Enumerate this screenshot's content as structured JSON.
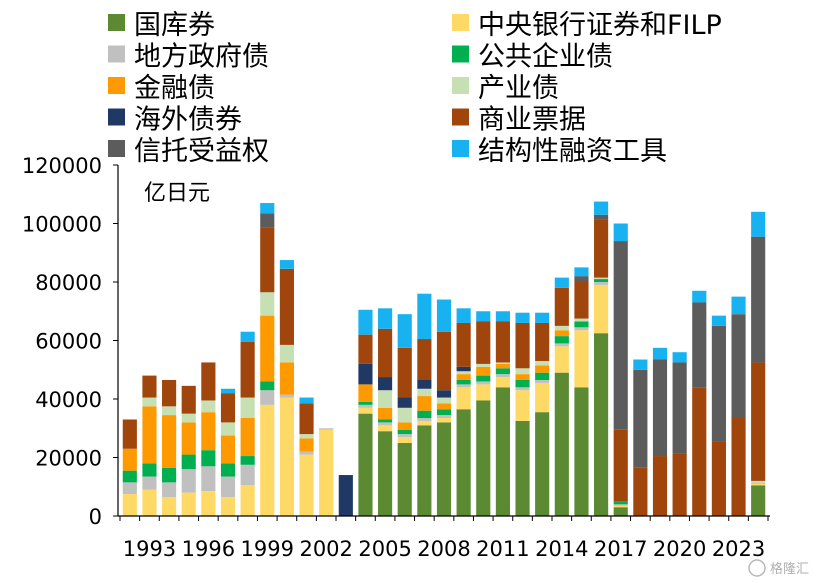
{
  "chart_data": {
    "type": "bar",
    "stacked": true,
    "unit_label": "亿日元",
    "ylim": [
      0,
      120000
    ],
    "yticks": [
      "0",
      "20000",
      "40000",
      "60000",
      "80000",
      "100000",
      "120000"
    ],
    "years": [
      1992,
      1993,
      1994,
      1995,
      1996,
      1997,
      1998,
      1999,
      2000,
      2001,
      2002,
      2003,
      2004,
      2005,
      2006,
      2007,
      2008,
      2009,
      2010,
      2011,
      2012,
      2013,
      2014,
      2015,
      2016,
      2017,
      2018,
      2019,
      2020,
      2021,
      2022,
      2023,
      2024
    ],
    "xtick_labels": [
      "1993",
      "1996",
      "1999",
      "2002",
      "2005",
      "2008",
      "2011",
      "2014",
      "2017",
      "2020",
      "2023"
    ],
    "series": [
      {
        "name": "国库券",
        "color": "#5b8a32",
        "values": [
          0,
          0,
          0,
          0,
          0,
          0,
          0,
          0,
          0,
          0,
          0,
          0,
          35000,
          29000,
          25000,
          31000,
          32000,
          36500,
          39500,
          44000,
          32500,
          35500,
          49000,
          44000,
          62500,
          3000,
          0,
          0,
          0,
          0,
          0,
          0,
          10500
        ]
      },
      {
        "name": "中央银行证券和FILP",
        "color": "#ffd966",
        "values": [
          7500,
          9000,
          6500,
          8000,
          8500,
          6500,
          10500,
          38000,
          40500,
          21000,
          29500,
          0,
          2000,
          2000,
          2000,
          1500,
          1500,
          7500,
          5500,
          3500,
          10500,
          10000,
          9000,
          19500,
          16500,
          500,
          0,
          0,
          0,
          0,
          0,
          0,
          500
        ]
      },
      {
        "name": "地方政府债",
        "color": "#c0c0c0",
        "values": [
          4000,
          4500,
          5000,
          8000,
          8500,
          7000,
          7000,
          5000,
          1000,
          1000,
          500,
          0,
          1000,
          1000,
          1000,
          1000,
          1000,
          1000,
          1000,
          1000,
          1000,
          1000,
          1000,
          1000,
          1000,
          500,
          0,
          0,
          0,
          0,
          0,
          0,
          500
        ]
      },
      {
        "name": "公共企业债",
        "color": "#00b050",
        "values": [
          4000,
          4500,
          5000,
          5000,
          5500,
          4500,
          3000,
          3000,
          0,
          0,
          0,
          0,
          1000,
          1000,
          1500,
          2500,
          2000,
          1500,
          2000,
          2000,
          2500,
          2500,
          2500,
          2000,
          1000,
          1000,
          0,
          0,
          0,
          0,
          0,
          0,
          0
        ]
      },
      {
        "name": "金融债",
        "color": "#ff9900",
        "values": [
          7500,
          19500,
          18000,
          11000,
          13000,
          9500,
          13000,
          22500,
          11000,
          4500,
          0,
          0,
          6000,
          4000,
          2500,
          5000,
          2000,
          2000,
          3000,
          1500,
          2000,
          2500,
          2000,
          0,
          0,
          0,
          0,
          0,
          0,
          0,
          0,
          0,
          0
        ]
      },
      {
        "name": "产业债",
        "color": "#c6e0b4",
        "values": [
          0,
          3000,
          3000,
          3000,
          4000,
          4500,
          7000,
          8000,
          6000,
          1500,
          0,
          0,
          0,
          6000,
          5000,
          2500,
          2000,
          1000,
          1000,
          500,
          2000,
          1500,
          1500,
          1000,
          500,
          0,
          0,
          0,
          0,
          0,
          0,
          0,
          500
        ]
      },
      {
        "name": "海外债券",
        "color": "#203864",
        "values": [
          0,
          0,
          0,
          0,
          0,
          0,
          0,
          0,
          0,
          0,
          0,
          14000,
          7000,
          4500,
          3500,
          3000,
          2500,
          1500,
          0,
          0,
          0,
          0,
          0,
          0,
          0,
          0,
          0,
          0,
          0,
          0,
          0,
          0,
          0
        ]
      },
      {
        "name": "商业票据",
        "color": "#a0450b",
        "values": [
          10000,
          7500,
          9000,
          9500,
          13000,
          10000,
          19000,
          22000,
          26000,
          10500,
          0,
          0,
          10000,
          16500,
          17000,
          14000,
          20000,
          15000,
          14500,
          14000,
          15500,
          13000,
          13000,
          12500,
          20000,
          24500,
          16500,
          20500,
          21500,
          44000,
          25500,
          33500,
          40500
        ]
      },
      {
        "name": "信托受益权",
        "color": "#5c5c5c",
        "values": [
          0,
          0,
          0,
          0,
          0,
          0,
          0,
          5000,
          0,
          0,
          0,
          0,
          0,
          0,
          0,
          0,
          0,
          0,
          0,
          0,
          0,
          0,
          0,
          2000,
          1500,
          64500,
          33500,
          33000,
          31000,
          29000,
          39500,
          35500,
          43000
        ]
      },
      {
        "name": "结构性融资工具",
        "color": "#19b2f0",
        "values": [
          0,
          0,
          0,
          0,
          0,
          1500,
          3500,
          3500,
          3000,
          2000,
          0,
          0,
          8500,
          7000,
          11500,
          15500,
          11000,
          5000,
          3500,
          3500,
          3500,
          3500,
          3500,
          3000,
          4500,
          6000,
          3500,
          4000,
          3500,
          4000,
          3500,
          6000,
          8500
        ]
      }
    ]
  },
  "watermark": "格隆汇"
}
